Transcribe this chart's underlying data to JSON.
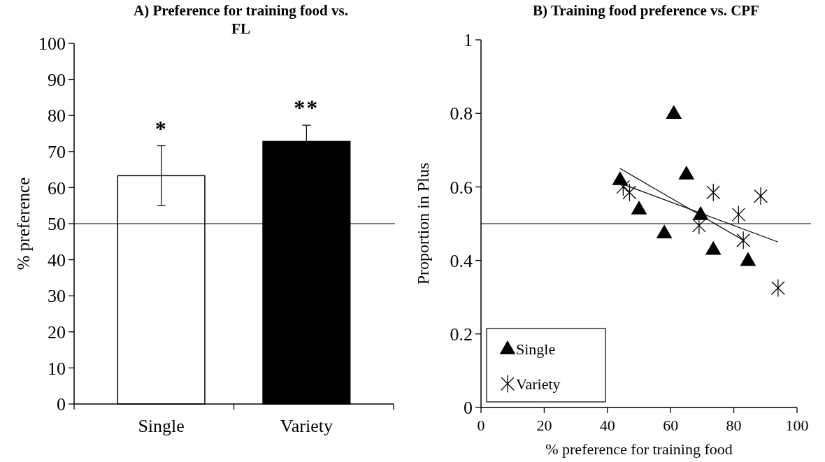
{
  "chart_data": [
    {
      "type": "bar",
      "title": "A) Preference for training food vs. FL",
      "ylabel": "% preference",
      "categories": [
        "Single",
        "Variety"
      ],
      "values": [
        63.3,
        72.8
      ],
      "colors": [
        "#ffffff",
        "#000000"
      ],
      "errors": [
        8.3,
        4.5
      ],
      "ylim": [
        0,
        100
      ],
      "yticks": [
        0,
        10,
        20,
        30,
        40,
        50,
        60,
        70,
        80,
        90,
        100
      ],
      "ref_lines": [
        {
          "axis": "y",
          "value": 50,
          "label": null
        }
      ],
      "annotations": [
        "*",
        "**"
      ],
      "grid": false,
      "legend": false
    },
    {
      "type": "scatter",
      "title": "B) Training food preference vs. CPF",
      "xlabel": "% preference for training food",
      "ylabel": "Proportion in Plus",
      "xlim": [
        0,
        100
      ],
      "xticks": [
        0,
        20,
        40,
        60,
        80,
        100
      ],
      "ylim": [
        0,
        1
      ],
      "yticks": [
        0,
        0.2,
        0.4,
        0.6,
        0.8,
        1
      ],
      "ref_lines": [
        {
          "axis": "y",
          "value": 0.5,
          "label": null
        }
      ],
      "grid": false,
      "legend": "bottom left",
      "series": [
        {
          "name": "Single",
          "color": "#000000",
          "marker": "triangle",
          "x": [
            44,
            50,
            58,
            61,
            65,
            69.5,
            73.5,
            84.5
          ],
          "values": [
            0.62,
            0.54,
            0.475,
            0.8,
            0.635,
            0.525,
            0.43,
            0.4
          ]
        },
        {
          "name": "Variety",
          "color": "#000000",
          "marker": "cross",
          "x": [
            45,
            47,
            69,
            73.5,
            81.5,
            83,
            88.5,
            94
          ],
          "values": [
            0.6,
            0.585,
            0.495,
            0.585,
            0.525,
            0.455,
            0.575,
            0.325
          ]
        },
        {
          "type": "line",
          "color": "#000000",
          "x": [
            44,
            83
          ],
          "values": [
            0.65,
            0.455
          ]
        },
        {
          "type": "line",
          "color": "#000000",
          "x": [
            44,
            94
          ],
          "values": [
            0.61,
            0.45
          ]
        }
      ]
    }
  ]
}
